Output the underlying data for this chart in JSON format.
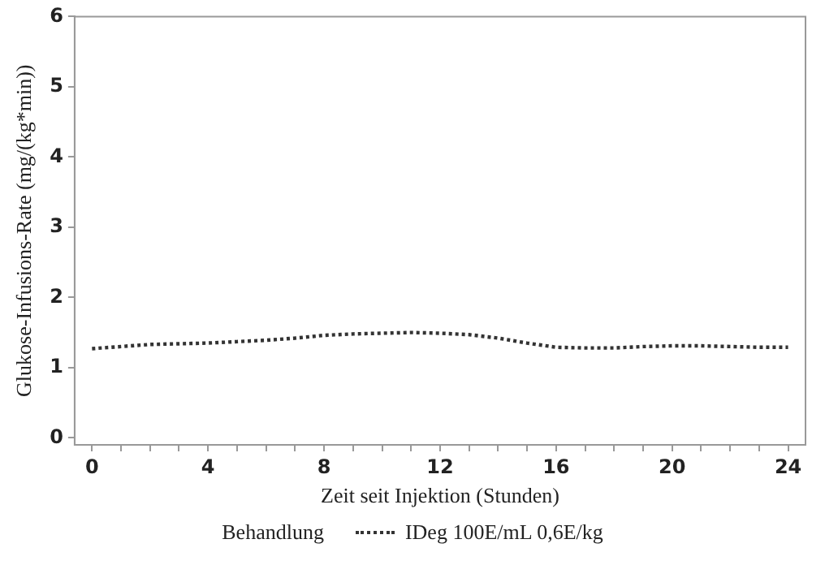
{
  "chart_data": {
    "type": "line",
    "xlabel": "Zeit seit Injektion (Stunden)",
    "ylabel": "Glukose-Infusions-Rate (mg/(kg*min))",
    "legend_title": "Behandlung",
    "legend": "bottom",
    "marker": "none",
    "line_style": "dotted",
    "grid": false,
    "xlim": [
      -0.6,
      24.6
    ],
    "ylim": [
      -0.1,
      6
    ],
    "xticks": [
      0,
      {
        "value": 1,
        "label": null
      },
      {
        "value": 2,
        "label": null
      },
      {
        "value": 3,
        "label": null
      },
      4,
      {
        "value": 5,
        "label": null
      },
      {
        "value": 6,
        "label": null
      },
      {
        "value": 7,
        "label": null
      },
      8,
      {
        "value": 9,
        "label": null
      },
      {
        "value": 10,
        "label": null
      },
      {
        "value": 11,
        "label": null
      },
      12,
      {
        "value": 13,
        "label": null
      },
      {
        "value": 14,
        "label": null
      },
      {
        "value": 15,
        "label": null
      },
      16,
      {
        "value": 17,
        "label": null
      },
      {
        "value": 18,
        "label": null
      },
      {
        "value": 19,
        "label": null
      },
      20,
      {
        "value": 21,
        "label": null
      },
      {
        "value": 22,
        "label": null
      },
      {
        "value": 23,
        "label": null
      },
      24
    ],
    "yticks": [
      0,
      1,
      2,
      3,
      4,
      5,
      6
    ],
    "x": [
      0,
      1,
      2,
      3,
      4,
      5,
      6,
      7,
      8,
      9,
      10,
      11,
      12,
      13,
      14,
      15,
      16,
      17,
      18,
      19,
      20,
      21,
      22,
      23,
      24
    ],
    "series": [
      {
        "name": "IDeg 100E/mL 0,6E/kg",
        "color": "#333333",
        "values": [
          1.27,
          1.3,
          1.33,
          1.34,
          1.35,
          1.37,
          1.39,
          1.42,
          1.46,
          1.48,
          1.49,
          1.5,
          1.49,
          1.47,
          1.42,
          1.35,
          1.29,
          1.28,
          1.28,
          1.3,
          1.31,
          1.31,
          1.3,
          1.29,
          1.29
        ]
      }
    ]
  }
}
